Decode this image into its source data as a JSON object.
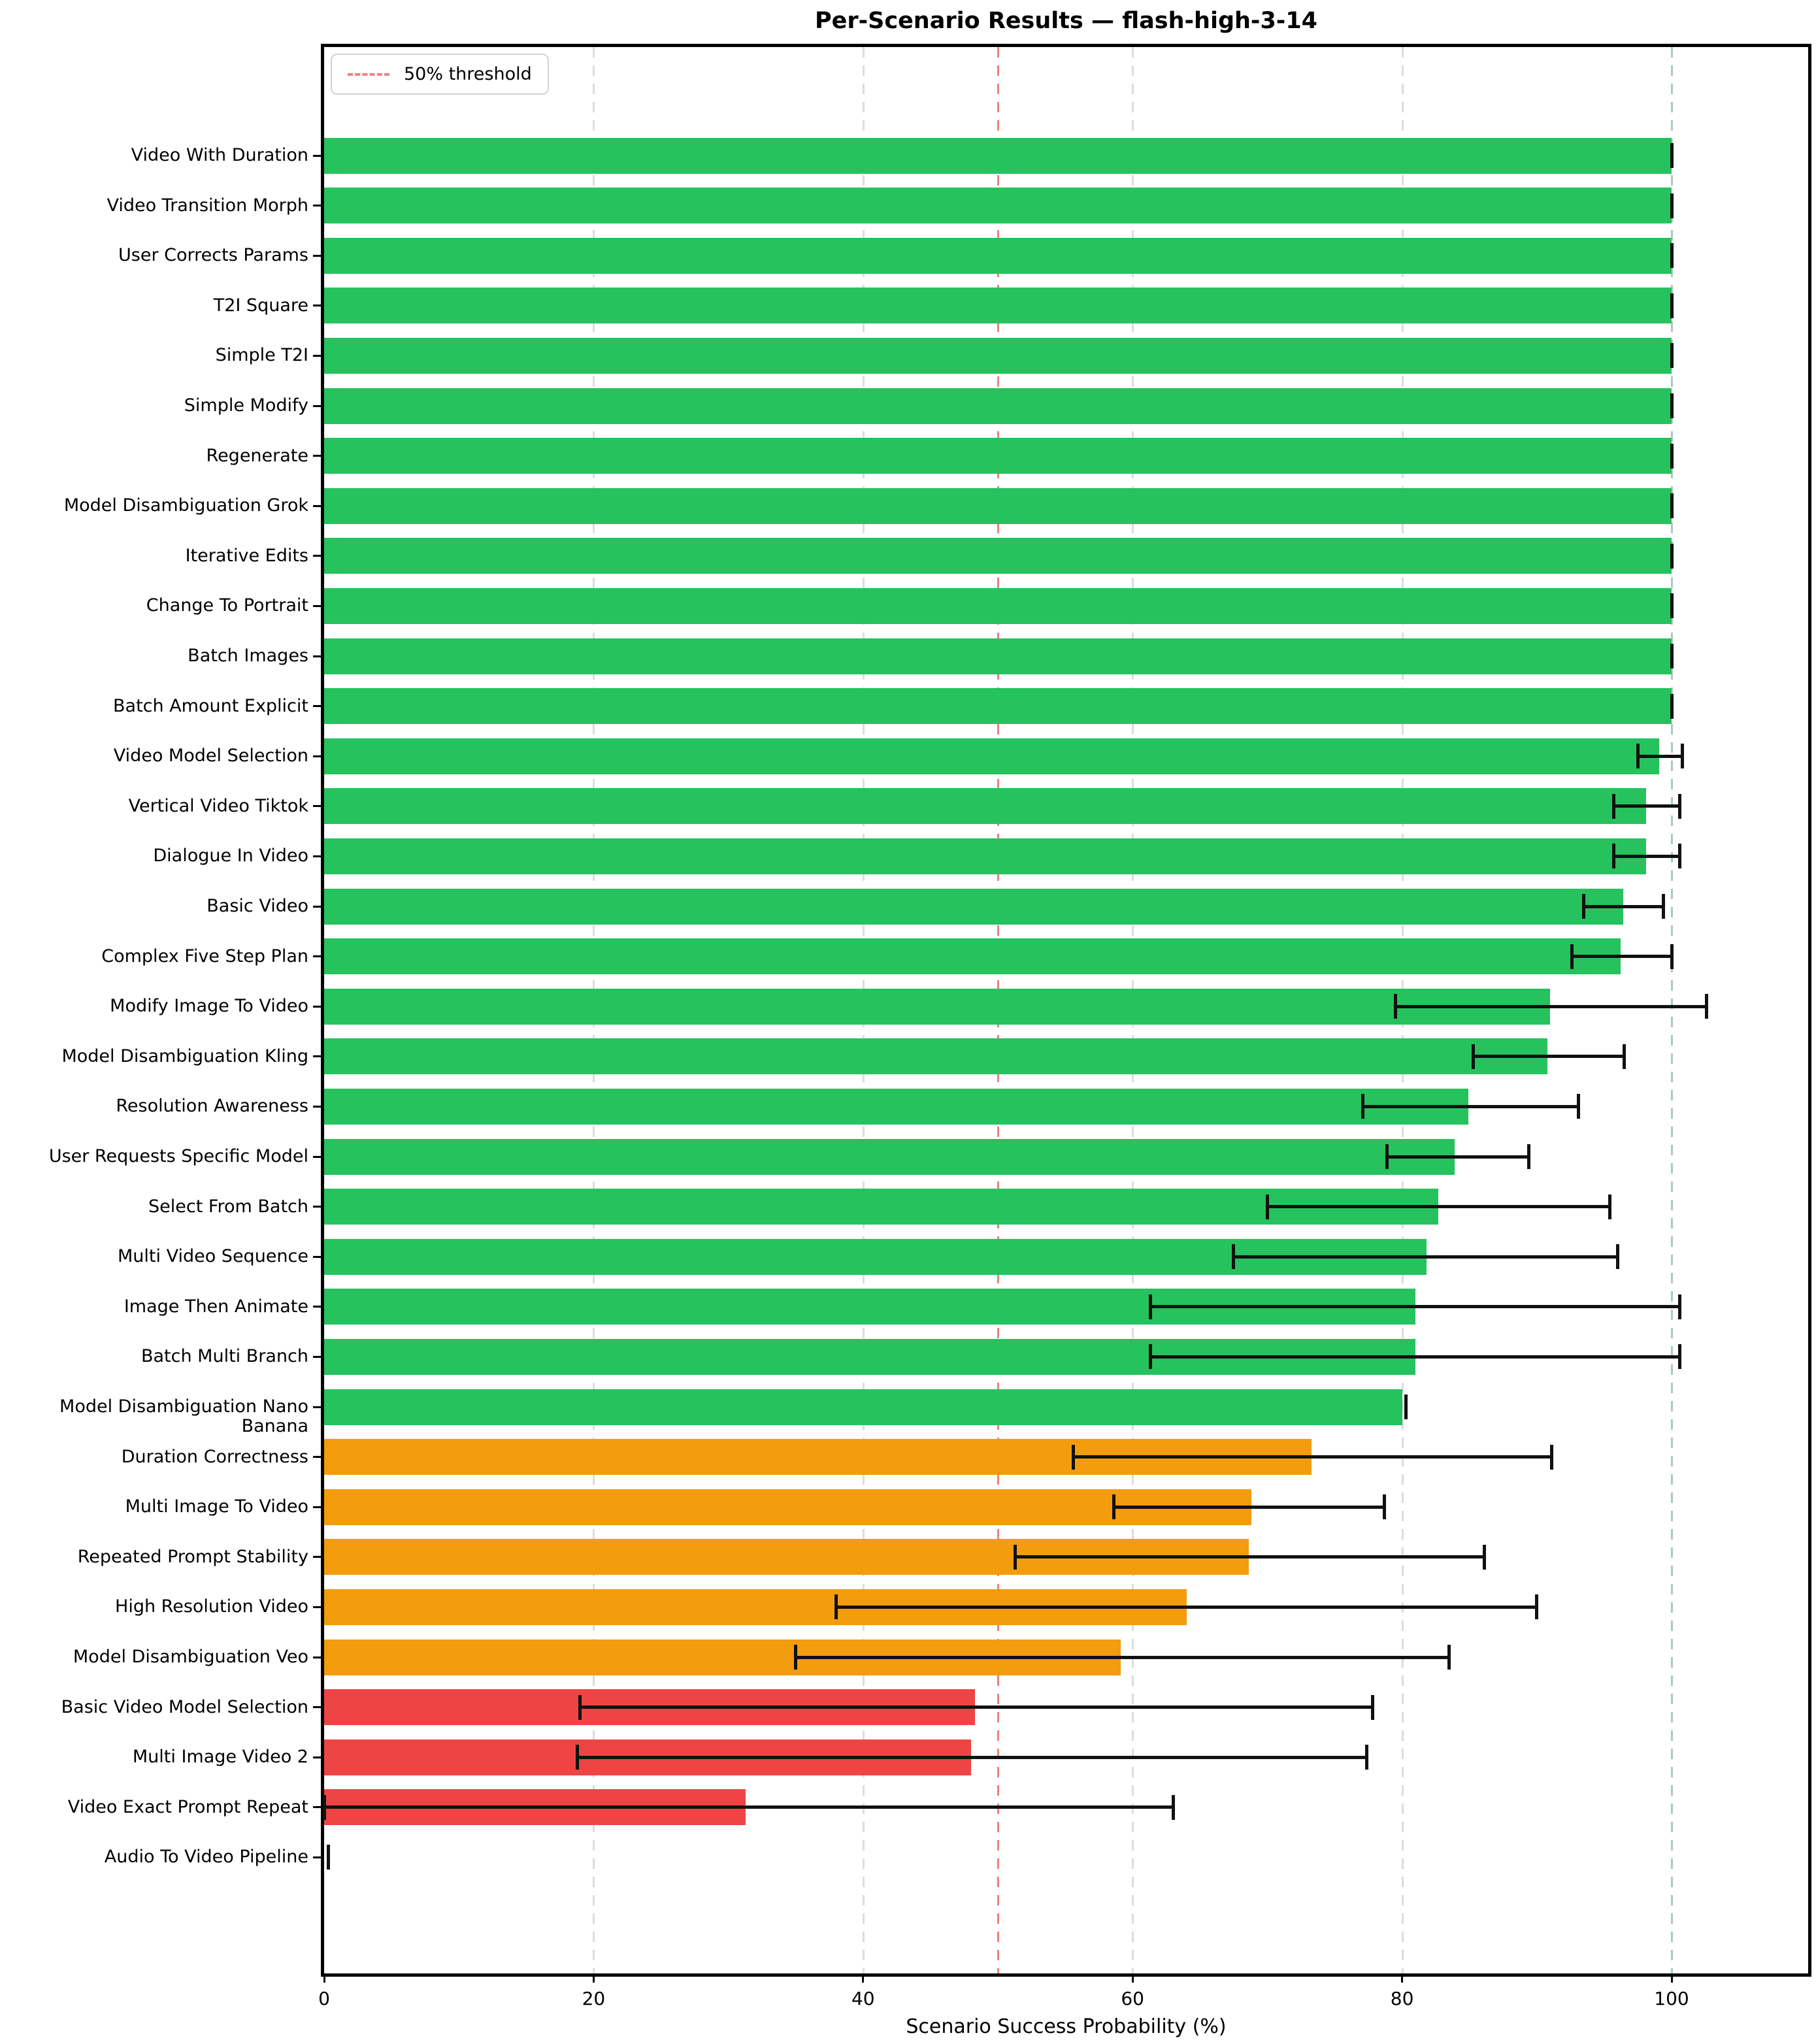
{
  "title": "Per-Scenario Results — flash-high-3-14",
  "legend": {
    "label": "50% threshold"
  },
  "xlabel": "Scenario Success Probability (%)",
  "colors": {
    "green": "#26c25e",
    "orange": "#f39c0d",
    "red": "#ef4444",
    "threshold_line": "#f08080",
    "gridline": "#dcdcdc",
    "gridline_100": "#abc9b4",
    "error_bar": "#111111",
    "spine": "#000000"
  },
  "chart_data": {
    "type": "bar",
    "orientation": "horizontal",
    "title": "Per-Scenario Results — flash-high-3-14",
    "xlabel": "Scenario Success Probability (%)",
    "ylabel": "",
    "xlim": [
      0,
      110
    ],
    "x_ticks": [
      0,
      20,
      40,
      60,
      80,
      100
    ],
    "grid": "dashed vertical at each x tick",
    "legend_position": "upper left",
    "threshold_pct": 50,
    "categories": [
      "Video With Duration",
      "Video Transition Morph",
      "User Corrects Params",
      "T2I Square",
      "Simple T2I",
      "Simple Modify",
      "Regenerate",
      "Model Disambiguation Grok",
      "Iterative Edits",
      "Change To Portrait",
      "Batch Images",
      "Batch Amount Explicit",
      "Video Model Selection",
      "Vertical Video Tiktok",
      "Dialogue In Video",
      "Basic Video",
      "Complex Five Step Plan",
      "Modify Image To Video",
      "Model Disambiguation Kling",
      "Resolution Awareness",
      "User Requests Specific Model",
      "Select From Batch",
      "Multi Video Sequence",
      "Image Then Animate",
      "Batch Multi Branch",
      "Model Disambiguation Nano Banana",
      "Duration Correctness",
      "Multi Image To Video",
      "Repeated Prompt Stability",
      "High Resolution Video",
      "Model Disambiguation Veo",
      "Basic Video Model Selection",
      "Multi Image Video 2",
      "Video Exact Prompt Repeat",
      "Audio To Video Pipeline"
    ],
    "values": [
      100,
      100,
      100,
      100,
      100,
      100,
      100,
      100,
      100,
      100,
      100,
      100,
      99.1,
      98.1,
      98.1,
      96.4,
      96.2,
      91.0,
      90.8,
      84.9,
      83.9,
      82.7,
      81.8,
      81.0,
      81.0,
      80.0,
      73.3,
      68.8,
      68.6,
      64.0,
      59.1,
      48.3,
      48.0,
      31.3,
      0.0
    ],
    "ci_low": [
      100,
      100,
      100,
      100,
      100,
      100,
      100,
      100,
      100,
      100,
      100,
      100,
      97.5,
      95.7,
      95.7,
      93.5,
      92.6,
      79.5,
      85.3,
      77.1,
      78.9,
      70.0,
      67.5,
      61.3,
      61.3,
      79.8,
      55.6,
      58.6,
      51.3,
      38.0,
      35.0,
      19.0,
      18.8,
      0.0,
      0.0
    ],
    "ci_high": [
      100,
      100,
      100,
      100,
      100,
      100,
      100,
      100,
      100,
      100,
      100,
      100,
      100.8,
      100.6,
      100.6,
      99.4,
      100.0,
      102.6,
      96.5,
      93.1,
      89.4,
      95.4,
      96.0,
      100.6,
      100.6,
      80.3,
      91.1,
      78.7,
      86.1,
      90.0,
      83.5,
      77.8,
      77.4,
      63.0,
      0.3
    ],
    "bar_colors": [
      "green",
      "green",
      "green",
      "green",
      "green",
      "green",
      "green",
      "green",
      "green",
      "green",
      "green",
      "green",
      "green",
      "green",
      "green",
      "green",
      "green",
      "green",
      "green",
      "green",
      "green",
      "green",
      "green",
      "green",
      "green",
      "green",
      "orange",
      "orange",
      "orange",
      "orange",
      "orange",
      "red",
      "red",
      "red",
      "red"
    ]
  }
}
